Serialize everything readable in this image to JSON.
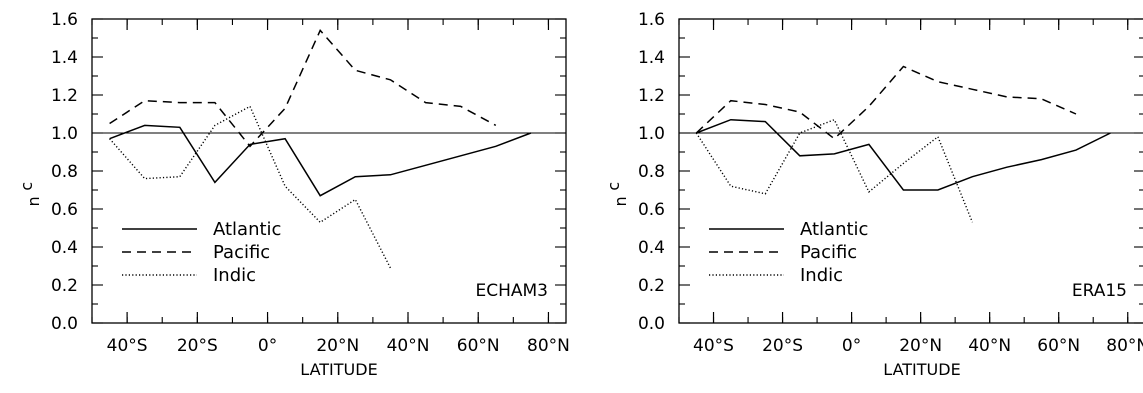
{
  "chart_data": [
    {
      "type": "line",
      "panel_label": "ECHAM3",
      "xlabel": "LATITUDE",
      "ylabel": "c",
      "ylabel_sub": "n",
      "xlim": [
        -50,
        85
      ],
      "ylim": [
        0,
        1.6
      ],
      "xticks": [
        -40,
        -20,
        0,
        20,
        40,
        60,
        80
      ],
      "xtick_labels": [
        "40°S",
        "20°S",
        "0°",
        "20°N",
        "40°N",
        "60°N",
        "80°N"
      ],
      "yticks": [
        0,
        0.2,
        0.4,
        0.6,
        0.8,
        1.0,
        1.2,
        1.4,
        1.6
      ],
      "ytick_labels": [
        "0.0",
        "0.2",
        "0.4",
        "0.6",
        "0.8",
        "1.0",
        "1.2",
        "1.4",
        "1.6"
      ],
      "reference_line": 1.0,
      "legend_position": "bottom-left",
      "series": [
        {
          "name": "Atlantic",
          "style": "solid",
          "x": [
            -45,
            -35,
            -25,
            -15,
            -5,
            5,
            15,
            25,
            35,
            45,
            55,
            65,
            75
          ],
          "y": [
            0.97,
            1.04,
            1.03,
            0.74,
            0.94,
            0.97,
            0.67,
            0.77,
            0.78,
            0.83,
            0.88,
            0.93,
            1.0
          ]
        },
        {
          "name": "Pacific",
          "style": "dashed",
          "x": [
            -45,
            -35,
            -25,
            -15,
            -5,
            5,
            15,
            25,
            35,
            45,
            55,
            65
          ],
          "y": [
            1.05,
            1.17,
            1.16,
            1.16,
            0.93,
            1.13,
            1.54,
            1.33,
            1.28,
            1.16,
            1.14,
            1.04
          ]
        },
        {
          "name": "Indic",
          "style": "dotted",
          "x": [
            -45,
            -35,
            -25,
            -15,
            -5,
            5,
            15,
            25,
            35
          ],
          "y": [
            0.97,
            0.76,
            0.77,
            1.04,
            1.14,
            0.72,
            0.53,
            0.65,
            0.29
          ]
        }
      ]
    },
    {
      "type": "line",
      "panel_label": "ERA15",
      "xlabel": "LATITUDE",
      "ylabel": "c",
      "ylabel_sub": "n",
      "xlim": [
        -50,
        85
      ],
      "ylim": [
        0,
        1.6
      ],
      "xticks": [
        -40,
        -20,
        0,
        20,
        40,
        60,
        80
      ],
      "xtick_labels": [
        "40°S",
        "20°S",
        "0°",
        "20°N",
        "40°N",
        "60°N",
        "80°N"
      ],
      "yticks": [
        0,
        0.2,
        0.4,
        0.6,
        0.8,
        1.0,
        1.2,
        1.4,
        1.6
      ],
      "ytick_labels": [
        "0.0",
        "0.2",
        "0.4",
        "0.6",
        "0.8",
        "1.0",
        "1.2",
        "1.4",
        "1.6"
      ],
      "reference_line": 1.0,
      "legend_position": "bottom-left",
      "series": [
        {
          "name": "Atlantic",
          "style": "solid",
          "x": [
            -45,
            -35,
            -25,
            -15,
            -5,
            5,
            15,
            25,
            35,
            45,
            55,
            65,
            75
          ],
          "y": [
            1.0,
            1.07,
            1.06,
            0.88,
            0.89,
            0.94,
            0.7,
            0.7,
            0.77,
            0.82,
            0.86,
            0.91,
            1.0
          ]
        },
        {
          "name": "Pacific",
          "style": "dashed",
          "x": [
            -45,
            -35,
            -25,
            -15,
            -5,
            5,
            15,
            25,
            35,
            45,
            55,
            65
          ],
          "y": [
            1.0,
            1.17,
            1.15,
            1.11,
            0.97,
            1.14,
            1.35,
            1.27,
            1.23,
            1.19,
            1.18,
            1.1
          ]
        },
        {
          "name": "Indic",
          "style": "dotted",
          "x": [
            -45,
            -35,
            -25,
            -15,
            -5,
            5,
            15,
            25,
            35
          ],
          "y": [
            1.0,
            0.72,
            0.68,
            1.0,
            1.07,
            0.69,
            0.84,
            0.98,
            0.53
          ]
        }
      ]
    }
  ]
}
